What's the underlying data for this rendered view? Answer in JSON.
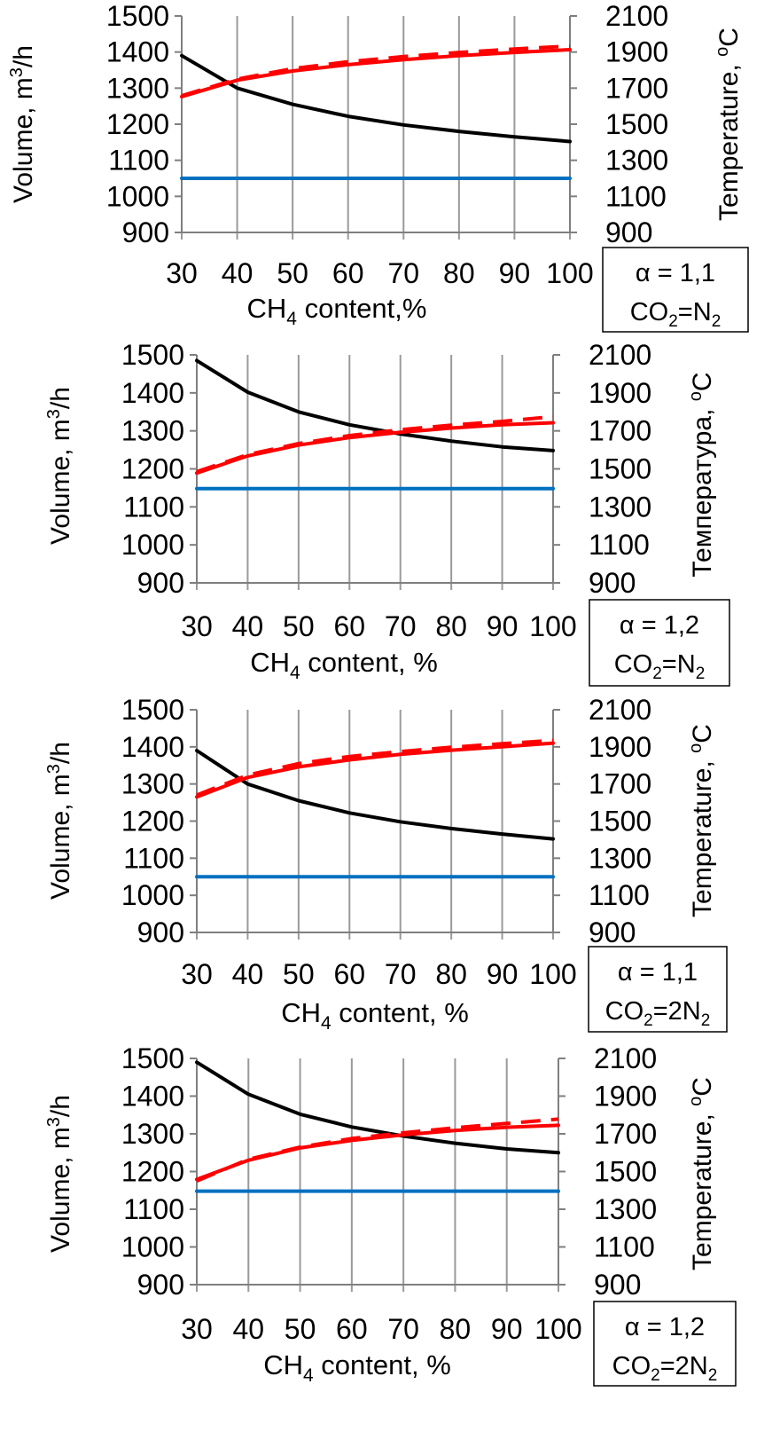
{
  "chart_data": [
    {
      "type": "line",
      "x": [
        30,
        40,
        50,
        60,
        70,
        80,
        90,
        100
      ],
      "x_ticks": [
        "30",
        "40",
        "50",
        "60",
        "70",
        "80",
        "90",
        "100"
      ],
      "xlabel_main": "CH",
      "xlabel_sub": "4",
      "xlabel_rest": " content,%",
      "ylabel_left_main": "Volume, m",
      "ylabel_left_sup": "3",
      "ylabel_left_rest": "/h",
      "ylabel_right_sup": "o",
      "ylabel_right_main": "Temperature, ",
      "ylabel_right_rest": "C",
      "ylim_left": [
        900,
        1500
      ],
      "yticks_left": [
        "900",
        "1000",
        "1100",
        "1200",
        "1300",
        "1400",
        "1500"
      ],
      "ylim_right": [
        900,
        2100
      ],
      "yticks_right": [
        "900",
        "1100",
        "1300",
        "1500",
        "1700",
        "1900",
        "2100"
      ],
      "grid": true,
      "note_line1": "α = 1,1",
      "note_line2_a": "CO",
      "note_line2_sub1": "2",
      "note_line2_b": "=N",
      "note_line2_sub2": "2",
      "series": [
        {
          "color": "#000000",
          "style": "solid",
          "axis": "left",
          "values": [
            1390,
            1300,
            1255,
            1222,
            1198,
            1180,
            1165,
            1152
          ]
        },
        {
          "color": "#ff0000",
          "style": "solid",
          "axis": "right",
          "values": [
            1653,
            1744,
            1795,
            1830,
            1858,
            1880,
            1898,
            1913
          ]
        },
        {
          "color": "#ff0000",
          "style": "dashed",
          "axis": "right",
          "values": [
            1658,
            1750,
            1808,
            1846,
            1875,
            1898,
            1917,
            1933
          ]
        },
        {
          "color": "#0070c0",
          "style": "solid",
          "axis": "left",
          "values": [
            1050,
            1050,
            1050,
            1050,
            1050,
            1050,
            1050,
            1050
          ]
        }
      ]
    },
    {
      "type": "line",
      "x": [
        30,
        40,
        50,
        60,
        70,
        80,
        90,
        100
      ],
      "x_ticks": [
        "30",
        "40",
        "50",
        "60",
        "70",
        "80",
        "90",
        "100"
      ],
      "xlabel_main": "CH",
      "xlabel_sub": "4",
      "xlabel_rest": " content, %",
      "ylabel_left_main": "Volume, m",
      "ylabel_left_sup": "3",
      "ylabel_left_rest": "/h",
      "ylabel_right_sup": "o",
      "ylabel_right_main": "Температура, ",
      "ylabel_right_rest": "C",
      "ylim_left": [
        900,
        1500
      ],
      "yticks_left": [
        "900",
        "1000",
        "1100",
        "1200",
        "1300",
        "1400",
        "1500"
      ],
      "ylim_right": [
        900,
        2100
      ],
      "yticks_right": [
        "900",
        "1100",
        "1300",
        "1500",
        "1700",
        "1900",
        "2100"
      ],
      "grid": true,
      "note_line1": "α = 1,2",
      "note_line2_a": "CO",
      "note_line2_sub1": "2",
      "note_line2_b": "=N",
      "note_line2_sub2": "2",
      "series": [
        {
          "color": "#000000",
          "style": "solid",
          "axis": "left",
          "values": [
            1485,
            1402,
            1350,
            1316,
            1292,
            1273,
            1258,
            1248
          ]
        },
        {
          "color": "#ff0000",
          "style": "solid",
          "axis": "right",
          "values": [
            1478,
            1568,
            1625,
            1665,
            1693,
            1715,
            1732,
            1743
          ]
        },
        {
          "color": "#ff0000",
          "style": "dashed",
          "axis": "right",
          "values": [
            1485,
            1575,
            1633,
            1675,
            1706,
            1730,
            1750,
            1775
          ]
        },
        {
          "color": "#0070c0",
          "style": "solid",
          "axis": "left",
          "values": [
            1148,
            1148,
            1148,
            1148,
            1148,
            1148,
            1148,
            1148
          ]
        }
      ]
    },
    {
      "type": "line",
      "x": [
        30,
        40,
        50,
        60,
        70,
        80,
        90,
        100
      ],
      "x_ticks": [
        "30",
        "40",
        "50",
        "60",
        "70",
        "80",
        "90",
        "100"
      ],
      "xlabel_main": "CH",
      "xlabel_sub": "4",
      "xlabel_rest": " content, %",
      "ylabel_left_main": "Volume, m",
      "ylabel_left_sup": "3",
      "ylabel_left_rest": "/h",
      "ylabel_right_sup": "o",
      "ylabel_right_main": "Temperature, ",
      "ylabel_right_rest": "C",
      "ylim_left": [
        900,
        1500
      ],
      "yticks_left": [
        "900",
        "1000",
        "1100",
        "1200",
        "1300",
        "1400",
        "1500"
      ],
      "ylim_right": [
        900,
        2100
      ],
      "yticks_right": [
        "900",
        "1100",
        "1300",
        "1500",
        "1700",
        "1900",
        "2100"
      ],
      "grid": true,
      "note_line1": "α = 1,1",
      "note_line2_a": "CO",
      "note_line2_sub1": "2",
      "note_line2_b": "=2N",
      "note_line2_sub2": "2",
      "series": [
        {
          "color": "#000000",
          "style": "solid",
          "axis": "left",
          "values": [
            1390,
            1300,
            1255,
            1222,
            1198,
            1180,
            1165,
            1152
          ]
        },
        {
          "color": "#ff0000",
          "style": "solid",
          "axis": "right",
          "values": [
            1630,
            1735,
            1792,
            1830,
            1860,
            1882,
            1900,
            1920
          ]
        },
        {
          "color": "#ff0000",
          "style": "dashed",
          "axis": "right",
          "values": [
            1640,
            1748,
            1810,
            1848,
            1875,
            1898,
            1917,
            1935
          ]
        },
        {
          "color": "#0070c0",
          "style": "solid",
          "axis": "left",
          "values": [
            1050,
            1050,
            1050,
            1050,
            1050,
            1050,
            1050,
            1050
          ]
        }
      ]
    },
    {
      "type": "line",
      "x": [
        30,
        40,
        50,
        60,
        70,
        80,
        90,
        100
      ],
      "x_ticks": [
        "30",
        "40",
        "50",
        "60",
        "70",
        "80",
        "90",
        "100"
      ],
      "xlabel_main": "CH",
      "xlabel_sub": "4",
      "xlabel_rest": " content, %",
      "ylabel_left_main": "Volume, m",
      "ylabel_left_sup": "3",
      "ylabel_left_rest": "/h",
      "ylabel_right_sup": "o",
      "ylabel_right_main": "Temperature, ",
      "ylabel_right_rest": "C",
      "ylim_left": [
        900,
        1500
      ],
      "yticks_left": [
        "900",
        "1000",
        "1100",
        "1200",
        "1300",
        "1400",
        "1500"
      ],
      "ylim_right": [
        900,
        2100
      ],
      "yticks_right": [
        "900",
        "1100",
        "1300",
        "1500",
        "1700",
        "1900",
        "2100"
      ],
      "grid": true,
      "note_line1": "α = 1,2",
      "note_line2_a": "CO",
      "note_line2_sub1": "2",
      "note_line2_b": "=2N",
      "note_line2_sub2": "2",
      "series": [
        {
          "color": "#000000",
          "style": "solid",
          "axis": "left",
          "values": [
            1490,
            1405,
            1352,
            1318,
            1294,
            1275,
            1260,
            1250
          ]
        },
        {
          "color": "#ff0000",
          "style": "solid",
          "axis": "right",
          "values": [
            1458,
            1560,
            1625,
            1665,
            1695,
            1718,
            1735,
            1745
          ]
        },
        {
          "color": "#ff0000",
          "style": "dashed",
          "axis": "right",
          "values": [
            1450,
            1565,
            1630,
            1675,
            1705,
            1732,
            1755,
            1778
          ]
        },
        {
          "color": "#0070c0",
          "style": "solid",
          "axis": "left",
          "values": [
            1148,
            1148,
            1148,
            1148,
            1148,
            1148,
            1148,
            1148
          ]
        }
      ]
    }
  ]
}
